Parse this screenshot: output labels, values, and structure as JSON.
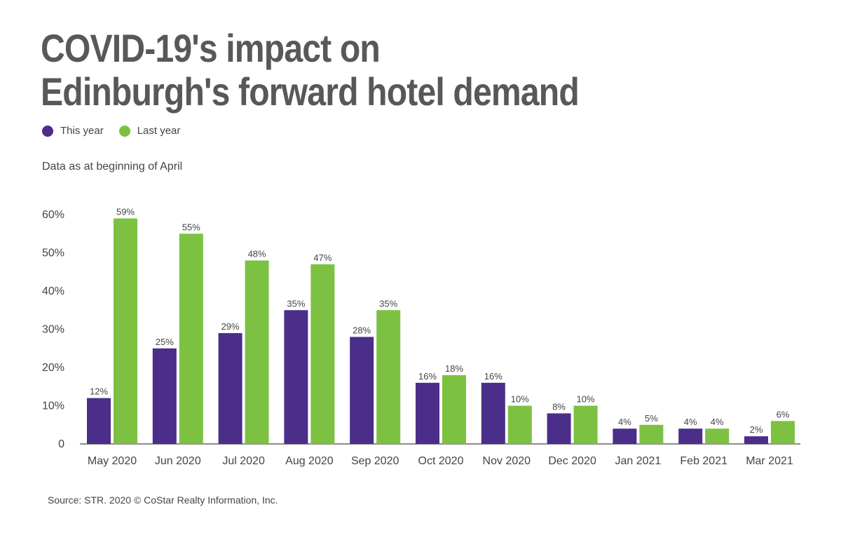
{
  "title_lines": [
    "COVID-19's impact on",
    "Edinburgh's forward hotel demand"
  ],
  "subtitle": "Data as at beginning of April",
  "source": "Source: STR. 2020 © CoStar Realty Information, Inc.",
  "colors": {
    "this_year": "#4b2e8a",
    "last_year": "#7dc142",
    "text": "#58585a",
    "axis": "#666666"
  },
  "legend": [
    {
      "label": "This year",
      "color": "#4b2e8a",
      "icon": "circle-icon"
    },
    {
      "label": "Last year",
      "color": "#7dc142",
      "icon": "circle-icon"
    }
  ],
  "chart_data": {
    "type": "bar",
    "title": "COVID-19's impact on Edinburgh's forward hotel demand",
    "xlabel": "",
    "ylabel": "",
    "ylim": [
      0,
      60
    ],
    "yticks": [
      0,
      10,
      20,
      30,
      40,
      50,
      60
    ],
    "ytick_labels": [
      "0",
      "10%",
      "20%",
      "30%",
      "40%",
      "50%",
      "60%"
    ],
    "grid": false,
    "legend_position": "top-left",
    "categories": [
      "May 2020",
      "Jun 2020",
      "Jul 2020",
      "Aug 2020",
      "Sep 2020",
      "Oct 2020",
      "Nov 2020",
      "Dec 2020",
      "Jan 2021",
      "Feb 2021",
      "Mar 2021"
    ],
    "series": [
      {
        "name": "This year",
        "values": [
          12,
          25,
          29,
          35,
          28,
          16,
          16,
          8,
          4,
          4,
          2
        ],
        "labels": [
          "12%",
          "25%",
          "29%",
          "35%",
          "28%",
          "16%",
          "16%",
          "8%",
          "4%",
          "4%",
          "2%"
        ]
      },
      {
        "name": "Last year",
        "values": [
          59,
          55,
          48,
          47,
          35,
          18,
          10,
          10,
          5,
          4,
          6
        ],
        "labels": [
          "59%",
          "55%",
          "48%",
          "47%",
          "35%",
          "18%",
          "10%",
          "10%",
          "5%",
          "4%",
          "6%"
        ]
      }
    ]
  }
}
